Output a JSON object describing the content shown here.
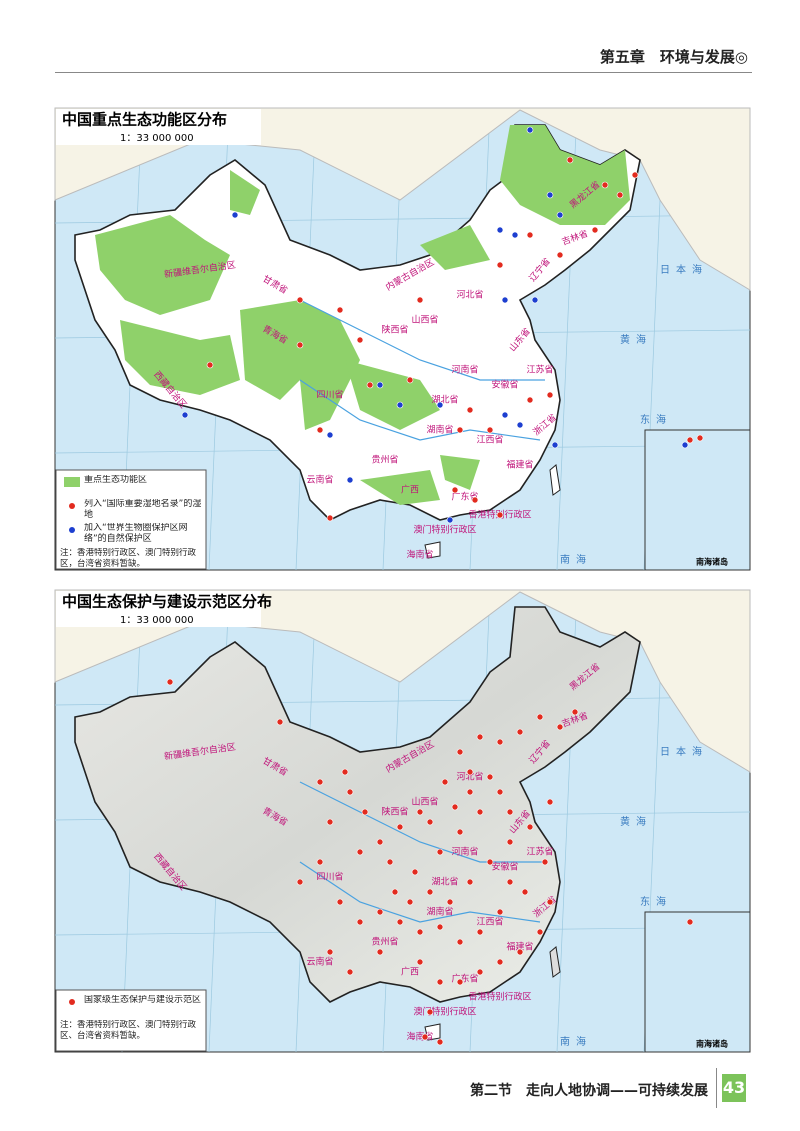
{
  "header": {
    "chapter": "第五章　环境与发展◎"
  },
  "maps": [
    {
      "title": "中国重点生态功能区分布",
      "scale": "1：33 000 000",
      "legend": [
        "重点生态功能区",
        "列入“国际重要湿地名录”的湿地",
        "加入“世界生物圈保护区网络”的自然保护区"
      ],
      "note": "注：香港特别行政区、澳门特别行政区，台湾省资料暂缺。",
      "inset": "南海诸岛"
    },
    {
      "title": "中国生态保护与建设示范区分布",
      "scale": "1：33 000 000",
      "legend": [
        "国家级生态保护与建设示范区"
      ],
      "note": "注：香港特别行政区、澳门特别行政区、台湾省资料暂缺。",
      "inset": "南海诸岛"
    }
  ],
  "place_names": [
    "新疆维吾尔自治区",
    "西藏自治区",
    "青海省",
    "内蒙古自治区",
    "黑龙江省",
    "吉林省",
    "辽宁省",
    "甘肃省",
    "四川省",
    "云南省",
    "贵州省",
    "湖南省",
    "湖北省",
    "江西省",
    "福建省",
    "浙江省",
    "河南省",
    "山东省",
    "江苏省",
    "安徽省",
    "广西",
    "广东省",
    "海南省",
    "香港特别行政区",
    "澳门特别行政区",
    "陕西省",
    "山西省",
    "河北省"
  ],
  "sea_names": [
    "日本海",
    "黄海",
    "东海",
    "南海"
  ],
  "footer": {
    "section": "第二节　走向人地协调——可持续发展",
    "page": "43"
  }
}
